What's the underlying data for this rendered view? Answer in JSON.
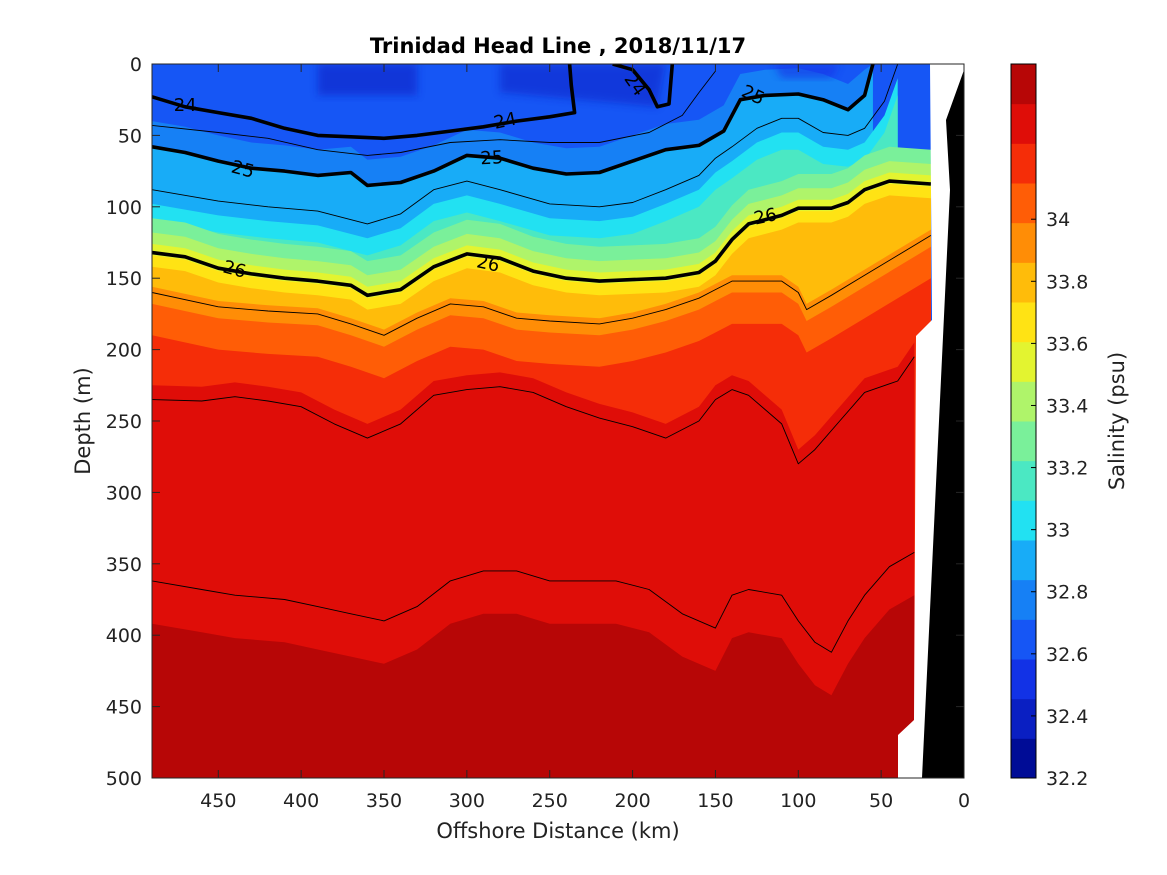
{
  "chart_data": {
    "type": "contourf",
    "title": "Trinidad Head Line , 2018/11/17",
    "xlabel": "Offshore Distance (km)",
    "ylabel": "Depth (m)",
    "xlim": [
      490,
      0
    ],
    "ylim": [
      0,
      500
    ],
    "x_reversed": true,
    "y_reversed": true,
    "x_ticks": [
      450,
      400,
      350,
      300,
      250,
      200,
      150,
      100,
      50,
      0
    ],
    "y_ticks": [
      0,
      50,
      100,
      150,
      200,
      250,
      300,
      350,
      400,
      450,
      500
    ],
    "colorbar": {
      "label": "Salinity (psu)",
      "range": [
        32.2,
        34.5
      ],
      "ticks": [
        32.2,
        32.4,
        32.6,
        32.8,
        33,
        33.2,
        33.4,
        33.6,
        33.8,
        34
      ],
      "tick_labels": [
        "32.2",
        "32.4",
        "32.6",
        "32.8",
        "33",
        "33.2",
        "33.4",
        "33.6",
        "33.8",
        "34"
      ],
      "colors": [
        "#000c96",
        "#0a1fc2",
        "#1232e6",
        "#1656f5",
        "#1680f5",
        "#18acf7",
        "#22e1f2",
        "#4be8c3",
        "#7af09a",
        "#aff46a",
        "#e3f430",
        "#ffe314",
        "#ffbc0a",
        "#ff8d06",
        "#ff5d06",
        "#f52d08",
        "#df0d08",
        "#b70606"
      ]
    },
    "density_contours": [
      {
        "level": 24,
        "label": "24",
        "points": [
          [
            490,
            23
          ],
          [
            470,
            30
          ],
          [
            450,
            34
          ],
          [
            430,
            38
          ],
          [
            410,
            45
          ],
          [
            390,
            50
          ],
          [
            370,
            51
          ],
          [
            350,
            52
          ],
          [
            330,
            50
          ],
          [
            310,
            47
          ],
          [
            290,
            44
          ],
          [
            270,
            40
          ],
          [
            250,
            37
          ],
          [
            235,
            34
          ],
          [
            237,
            15
          ],
          [
            238,
            0
          ]
        ]
      },
      {
        "level": 24,
        "label": "24",
        "points": [
          [
            212,
            0
          ],
          [
            200,
            4
          ],
          [
            190,
            18
          ],
          [
            185,
            30
          ],
          [
            178,
            28
          ],
          [
            176,
            0
          ]
        ]
      },
      {
        "level": 25,
        "label": "25",
        "points": [
          [
            490,
            58
          ],
          [
            470,
            62
          ],
          [
            450,
            68
          ],
          [
            430,
            73
          ],
          [
            410,
            75
          ],
          [
            390,
            78
          ],
          [
            370,
            76
          ],
          [
            360,
            85
          ],
          [
            340,
            83
          ],
          [
            320,
            75
          ],
          [
            300,
            64
          ],
          [
            280,
            66
          ],
          [
            260,
            73
          ],
          [
            240,
            77
          ],
          [
            220,
            76
          ],
          [
            200,
            68
          ],
          [
            180,
            60
          ],
          [
            160,
            57
          ],
          [
            145,
            47
          ],
          [
            135,
            25
          ],
          [
            120,
            22
          ],
          [
            100,
            21
          ],
          [
            85,
            25
          ],
          [
            70,
            32
          ],
          [
            60,
            22
          ],
          [
            55,
            0
          ]
        ]
      },
      {
        "level": 26,
        "label": "26",
        "points": [
          [
            490,
            132
          ],
          [
            470,
            135
          ],
          [
            450,
            143
          ],
          [
            430,
            147
          ],
          [
            410,
            150
          ],
          [
            390,
            152
          ],
          [
            370,
            155
          ],
          [
            360,
            162
          ],
          [
            340,
            158
          ],
          [
            320,
            142
          ],
          [
            300,
            133
          ],
          [
            280,
            136
          ],
          [
            260,
            145
          ],
          [
            240,
            150
          ],
          [
            220,
            152
          ],
          [
            200,
            151
          ],
          [
            180,
            150
          ],
          [
            160,
            146
          ],
          [
            150,
            138
          ],
          [
            140,
            123
          ],
          [
            130,
            112
          ],
          [
            110,
            106
          ],
          [
            100,
            101
          ],
          [
            80,
            101
          ],
          [
            70,
            97
          ],
          [
            60,
            88
          ],
          [
            45,
            82
          ],
          [
            20,
            84
          ]
        ]
      }
    ],
    "thin_contours": [
      {
        "points": [
          [
            490,
            43
          ],
          [
            450,
            48
          ],
          [
            420,
            52
          ],
          [
            390,
            60
          ],
          [
            360,
            64
          ],
          [
            340,
            62
          ],
          [
            310,
            55
          ],
          [
            280,
            53
          ],
          [
            250,
            55
          ],
          [
            220,
            55
          ],
          [
            190,
            48
          ],
          [
            170,
            36
          ],
          [
            160,
            20
          ],
          [
            150,
            5
          ]
        ]
      },
      {
        "points": [
          [
            490,
            88
          ],
          [
            450,
            96
          ],
          [
            420,
            100
          ],
          [
            390,
            103
          ],
          [
            360,
            112
          ],
          [
            340,
            105
          ],
          [
            320,
            88
          ],
          [
            300,
            82
          ],
          [
            280,
            88
          ],
          [
            250,
            98
          ],
          [
            220,
            100
          ],
          [
            200,
            97
          ],
          [
            180,
            88
          ],
          [
            160,
            78
          ],
          [
            150,
            66
          ],
          [
            140,
            58
          ],
          [
            125,
            45
          ],
          [
            110,
            38
          ],
          [
            100,
            38
          ],
          [
            85,
            48
          ],
          [
            70,
            50
          ],
          [
            60,
            45
          ],
          [
            48,
            26
          ],
          [
            40,
            0
          ]
        ]
      },
      {
        "points": [
          [
            490,
            160
          ],
          [
            450,
            170
          ],
          [
            420,
            173
          ],
          [
            390,
            175
          ],
          [
            370,
            182
          ],
          [
            350,
            190
          ],
          [
            330,
            178
          ],
          [
            310,
            168
          ],
          [
            290,
            170
          ],
          [
            270,
            178
          ],
          [
            250,
            180
          ],
          [
            220,
            182
          ],
          [
            200,
            178
          ],
          [
            180,
            172
          ],
          [
            160,
            164
          ],
          [
            150,
            158
          ],
          [
            140,
            152
          ],
          [
            130,
            152
          ],
          [
            110,
            152
          ],
          [
            100,
            160
          ],
          [
            95,
            172
          ],
          [
            80,
            162
          ],
          [
            60,
            148
          ],
          [
            40,
            134
          ],
          [
            20,
            120
          ]
        ]
      },
      {
        "points": [
          [
            490,
            235
          ],
          [
            460,
            236
          ],
          [
            440,
            233
          ],
          [
            420,
            236
          ],
          [
            400,
            240
          ],
          [
            380,
            252
          ],
          [
            360,
            262
          ],
          [
            340,
            252
          ],
          [
            320,
            232
          ],
          [
            300,
            228
          ],
          [
            280,
            226
          ],
          [
            260,
            230
          ],
          [
            240,
            240
          ],
          [
            220,
            248
          ],
          [
            200,
            254
          ],
          [
            180,
            262
          ],
          [
            160,
            250
          ],
          [
            150,
            235
          ],
          [
            140,
            228
          ],
          [
            130,
            232
          ],
          [
            110,
            252
          ],
          [
            100,
            280
          ],
          [
            90,
            270
          ],
          [
            75,
            250
          ],
          [
            60,
            230
          ],
          [
            40,
            222
          ],
          [
            30,
            205
          ]
        ]
      },
      {
        "points": [
          [
            490,
            362
          ],
          [
            460,
            368
          ],
          [
            440,
            372
          ],
          [
            410,
            375
          ],
          [
            390,
            380
          ],
          [
            370,
            385
          ],
          [
            350,
            390
          ],
          [
            330,
            380
          ],
          [
            310,
            362
          ],
          [
            290,
            355
          ],
          [
            270,
            355
          ],
          [
            250,
            362
          ],
          [
            230,
            362
          ],
          [
            210,
            362
          ],
          [
            190,
            368
          ],
          [
            170,
            385
          ],
          [
            150,
            395
          ],
          [
            140,
            372
          ],
          [
            130,
            368
          ],
          [
            110,
            372
          ],
          [
            100,
            390
          ],
          [
            90,
            405
          ],
          [
            80,
            412
          ],
          [
            70,
            390
          ],
          [
            60,
            372
          ],
          [
            45,
            352
          ],
          [
            30,
            342
          ]
        ]
      }
    ],
    "colorbar_edge": "#000000"
  }
}
